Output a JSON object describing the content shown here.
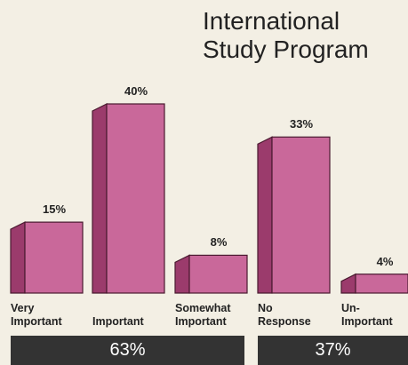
{
  "chart_data": {
    "type": "bar3d",
    "title": "International Study Program",
    "categories": [
      "Very Important",
      "Important",
      "Somewhat Important",
      "No Response",
      "Un-Important"
    ],
    "values": [
      15,
      40,
      8,
      33,
      4
    ],
    "value_labels": [
      "15%",
      "40%",
      "8%",
      "33%",
      "4%"
    ],
    "color": "#c9689a",
    "ylim": [
      0,
      40
    ],
    "group_labels": [
      "63%",
      "37%"
    ]
  }
}
